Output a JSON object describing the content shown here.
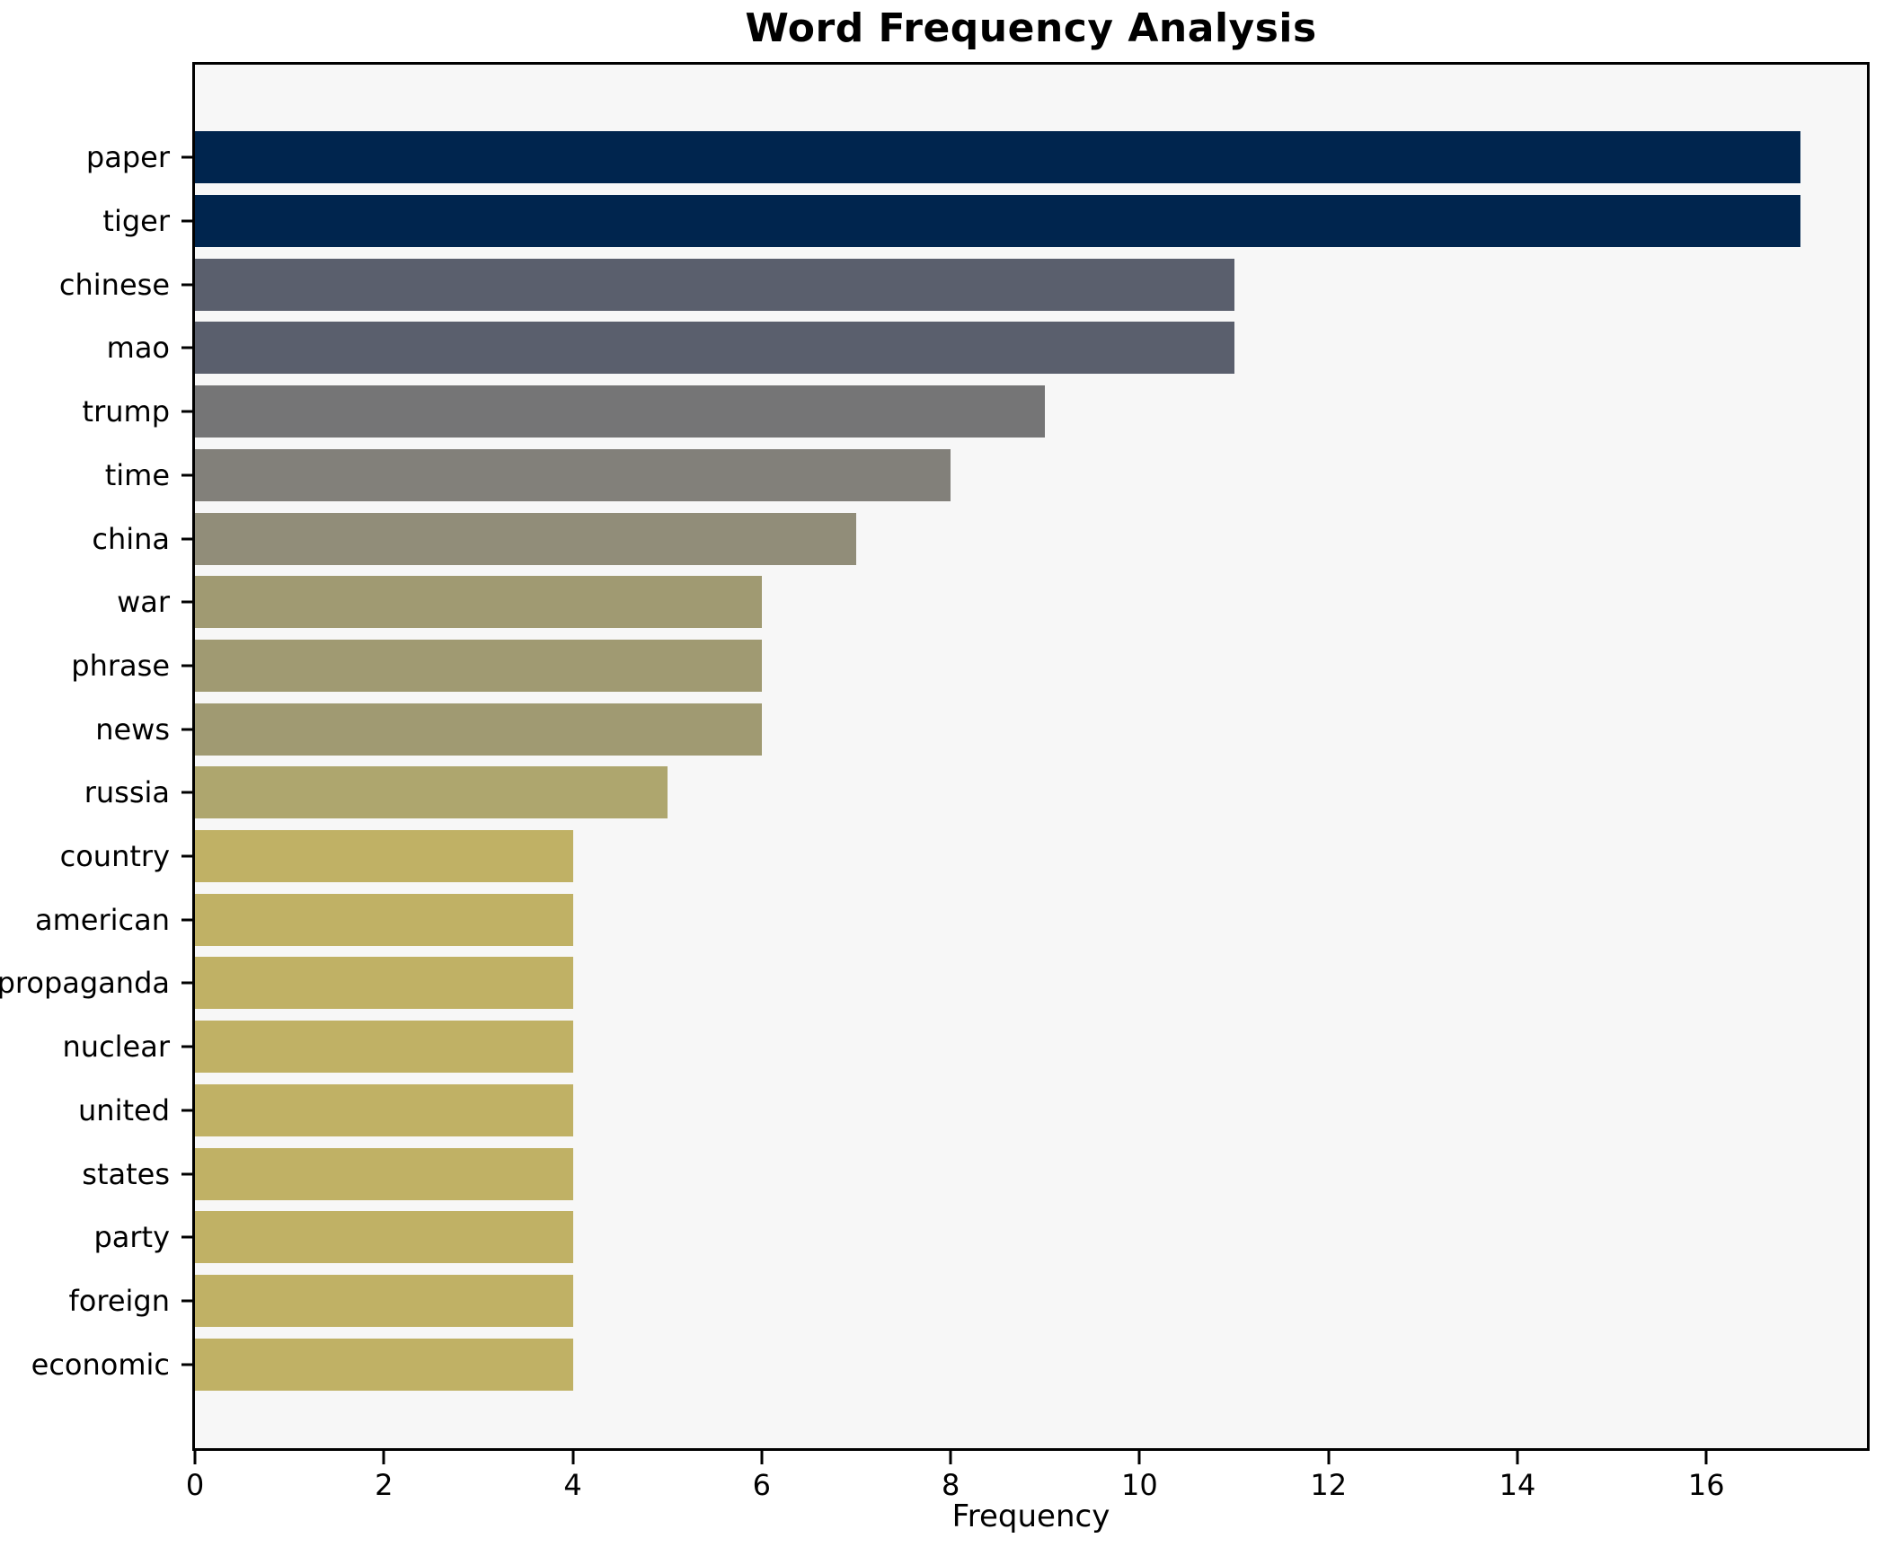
{
  "chart_data": {
    "type": "bar",
    "orientation": "horizontal",
    "title": "Word Frequency Analysis",
    "xlabel": "Frequency",
    "ylabel": "",
    "categories": [
      "paper",
      "tiger",
      "chinese",
      "mao",
      "trump",
      "time",
      "china",
      "war",
      "phrase",
      "news",
      "russia",
      "country",
      "american",
      "propaganda",
      "nuclear",
      "united",
      "states",
      "party",
      "foreign",
      "economic"
    ],
    "values": [
      17,
      17,
      11,
      11,
      9,
      8,
      7,
      6,
      6,
      6,
      5,
      4,
      4,
      4,
      4,
      4,
      4,
      4,
      4,
      4
    ],
    "bar_colors": [
      "#00254e",
      "#00254e",
      "#5a5f6d",
      "#5a5f6d",
      "#757576",
      "#82807a",
      "#918d79",
      "#a09a72",
      "#a09a72",
      "#a09a72",
      "#aea66e",
      "#c0b165",
      "#c0b165",
      "#c0b165",
      "#c0b165",
      "#c0b165",
      "#c0b165",
      "#c0b165",
      "#c0b165",
      "#c0b165"
    ],
    "xlim": [
      0,
      17.7
    ],
    "x_ticks": [
      0,
      2,
      4,
      6,
      8,
      10,
      12,
      14,
      16
    ],
    "grid": false,
    "legend": null,
    "plot_background": "#f7f7f7",
    "figure_background": "#ffffff",
    "axis_color": "#000000"
  }
}
